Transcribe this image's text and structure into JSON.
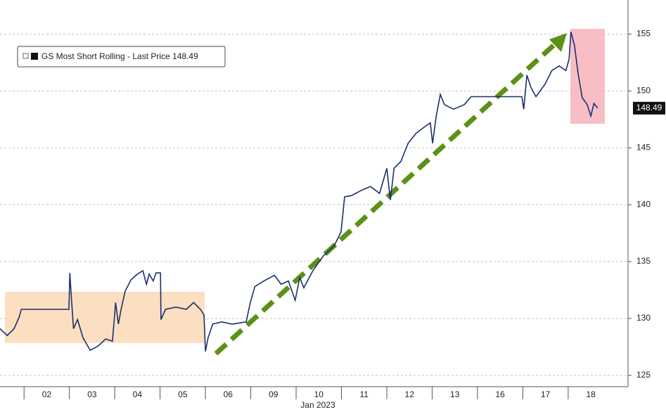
{
  "chart_data": {
    "type": "line",
    "x_axis_label": "Jan 2023",
    "xlim": [
      -0.53,
      13.32
    ],
    "xticks": [
      {
        "value": 0.5,
        "label": "02"
      },
      {
        "value": 1.5,
        "label": "03"
      },
      {
        "value": 2.5,
        "label": "04"
      },
      {
        "value": 3.5,
        "label": "05"
      },
      {
        "value": 4.5,
        "label": "06"
      },
      {
        "value": 5.5,
        "label": "09"
      },
      {
        "value": 6.5,
        "label": "10"
      },
      {
        "value": 7.5,
        "label": "11"
      },
      {
        "value": 8.5,
        "label": "12"
      },
      {
        "value": 9.5,
        "label": "13"
      },
      {
        "value": 10.5,
        "label": "16"
      },
      {
        "value": 11.5,
        "label": "17"
      },
      {
        "value": 12.5,
        "label": "18"
      }
    ],
    "ylim": [
      124,
      158
    ],
    "yticks": [
      125,
      130,
      135,
      140,
      145,
      150,
      155
    ],
    "grid": true,
    "last_price": 148.49,
    "x": [
      -0.53,
      -0.37,
      -0.22,
      -0.11,
      -0.06,
      0.99,
      1.01,
      1.04,
      1.09,
      1.18,
      1.3,
      1.46,
      1.64,
      1.8,
      1.95,
      2.02,
      2.08,
      2.14,
      2.23,
      2.36,
      2.5,
      2.62,
      2.7,
      2.76,
      2.85,
      2.91,
      3.01,
      3.02,
      3.12,
      3.35,
      3.58,
      3.74,
      3.89,
      3.97,
      4.0,
      4.06,
      4.16,
      4.36,
      4.59,
      4.9,
      4.99,
      5.09,
      5.29,
      5.52,
      5.67,
      5.83,
      5.98,
      6.08,
      6.17,
      6.37,
      6.6,
      6.84,
      6.99,
      7.07,
      7.22,
      7.46,
      7.64,
      7.84,
      8.0,
      8.08,
      8.16,
      8.31,
      8.47,
      8.65,
      8.85,
      8.96,
      9.01,
      9.09,
      9.18,
      9.27,
      9.47,
      9.71,
      9.86,
      10.98,
      11.02,
      11.09,
      11.18,
      11.29,
      11.49,
      11.64,
      11.8,
      11.95,
      12.02,
      12.06,
      12.14,
      12.22,
      12.31,
      12.42,
      12.5,
      12.57,
      12.65
    ],
    "series": [
      {
        "name": "GS Most Short Rolling - Last Price 148.49",
        "color": "#1c2f6b",
        "values": [
          129.1,
          128.5,
          129.1,
          130.1,
          130.8,
          130.8,
          134.0,
          132.1,
          129.1,
          129.9,
          128.3,
          127.2,
          127.6,
          128.2,
          128.0,
          131.4,
          129.5,
          130.8,
          132.4,
          133.4,
          133.9,
          134.2,
          133.0,
          133.9,
          133.3,
          134.0,
          134.0,
          129.9,
          130.8,
          131.0,
          130.8,
          131.4,
          130.8,
          130.3,
          127.1,
          128.3,
          129.5,
          129.7,
          129.5,
          129.7,
          131.4,
          132.8,
          133.3,
          133.8,
          133.0,
          133.3,
          131.6,
          133.6,
          132.7,
          134.2,
          135.5,
          136.4,
          137.6,
          140.7,
          140.8,
          141.3,
          141.6,
          141.0,
          143.2,
          140.4,
          143.2,
          143.8,
          145.4,
          146.3,
          146.9,
          147.2,
          145.4,
          147.8,
          149.7,
          148.8,
          148.4,
          148.8,
          149.5,
          149.5,
          148.4,
          151.4,
          150.3,
          149.5,
          150.6,
          151.8,
          152.2,
          151.8,
          152.8,
          155.2,
          154.0,
          151.5,
          149.4,
          148.8,
          147.8,
          148.9,
          148.49
        ]
      }
    ]
  }
}
